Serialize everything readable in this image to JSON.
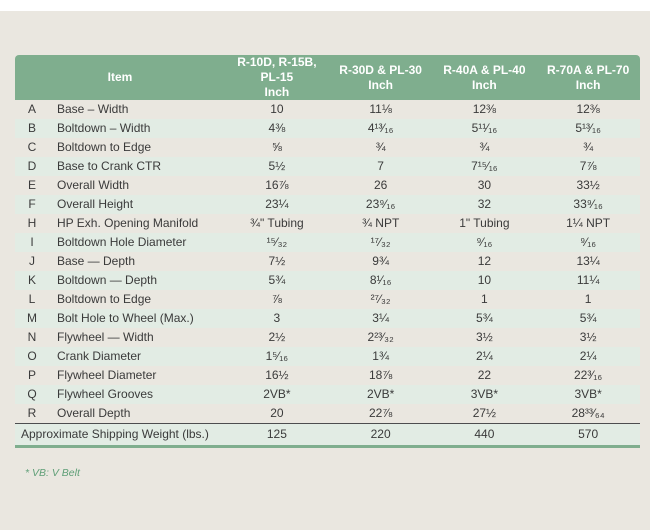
{
  "page": {
    "footnote": "* VB: V Belt"
  },
  "colors": {
    "header_green": "#7fae8e",
    "row_tint": "#e2ece4",
    "page_bg": "#eae7e0",
    "top_strip": "#ffffff",
    "footnote_green": "#5f9f77",
    "text_dark": "#3a3a3a"
  },
  "table": {
    "item_header": "Item",
    "columns": [
      {
        "title": "R-10D, R-15B, PL-15",
        "unit": "Inch"
      },
      {
        "title": "R-30D & PL-30",
        "unit": "Inch"
      },
      {
        "title": "R-40A & PL-40",
        "unit": "Inch"
      },
      {
        "title": "R-70A & PL-70",
        "unit": "Inch"
      }
    ],
    "rows": [
      {
        "letter": "A",
        "item": "Base – Width",
        "values": [
          "10",
          "11⅛",
          "12⅜",
          "12⅜"
        ]
      },
      {
        "letter": "B",
        "item": "Boltdown – Width",
        "values": [
          "4⅜",
          "4¹³⁄₁₆",
          "5¹¹⁄₁₆",
          "5¹³⁄₁₆"
        ]
      },
      {
        "letter": "C",
        "item": "Boltdown to Edge",
        "values": [
          "⅝",
          "¾",
          "¾",
          "¾"
        ]
      },
      {
        "letter": "D",
        "item": "Base to Crank CTR",
        "values": [
          "5½",
          "7",
          "7¹⁵⁄₁₆",
          "7⅞"
        ]
      },
      {
        "letter": "E",
        "item": "Overall Width",
        "values": [
          "16⅞",
          "26",
          "30",
          "33½"
        ]
      },
      {
        "letter": "F",
        "item": "Overall Height",
        "values": [
          "23¼",
          "23⁹⁄₁₆",
          "32",
          "33⁹⁄₁₆"
        ]
      },
      {
        "letter": "H",
        "item": "HP Exh. Opening Manifold",
        "values": [
          "¾\" Tubing",
          "¾ NPT",
          "1\" Tubing",
          "1¼ NPT"
        ]
      },
      {
        "letter": "I",
        "item": "Boltdown Hole Diameter",
        "values": [
          "¹⁵⁄₃₂",
          "¹⁷⁄₃₂",
          "⁹⁄₁₆",
          "⁹⁄₁₆"
        ]
      },
      {
        "letter": "J",
        "item": "Base — Depth",
        "values": [
          "7½",
          "9¾",
          "12",
          "13¼"
        ]
      },
      {
        "letter": "K",
        "item": "Boltdown — Depth",
        "values": [
          "5¾",
          "8¹⁄₁₆",
          "10",
          "11¼"
        ]
      },
      {
        "letter": "L",
        "item": "Boltdown to Edge",
        "values": [
          "⅞",
          "²⁷⁄₃₂",
          "1",
          "1"
        ]
      },
      {
        "letter": "M",
        "item": "Bolt Hole to Wheel (Max.)",
        "values": [
          "3",
          "3¼",
          "5¾",
          "5¾"
        ]
      },
      {
        "letter": "N",
        "item": "Flywheel — Width",
        "values": [
          "2½",
          "2²³⁄₃₂",
          "3½",
          "3½"
        ]
      },
      {
        "letter": "O",
        "item": "Crank Diameter",
        "values": [
          "1⁵⁄₁₆",
          "1¾",
          "2¼",
          "2¼"
        ]
      },
      {
        "letter": "P",
        "item": "Flywheel Diameter",
        "values": [
          "16½",
          "18⅞",
          "22",
          "22³⁄₁₆"
        ]
      },
      {
        "letter": "Q",
        "item": "Flywheel Grooves",
        "values": [
          "2VB*",
          "2VB*",
          "3VB*",
          "3VB*"
        ]
      },
      {
        "letter": "R",
        "item": "Overall Depth",
        "values": [
          "20",
          "22⅞",
          "27½",
          "28³³⁄₆₄"
        ]
      }
    ],
    "footer": {
      "label": "Approximate Shipping Weight (lbs.)",
      "values": [
        "125",
        "220",
        "440",
        "570"
      ]
    }
  }
}
